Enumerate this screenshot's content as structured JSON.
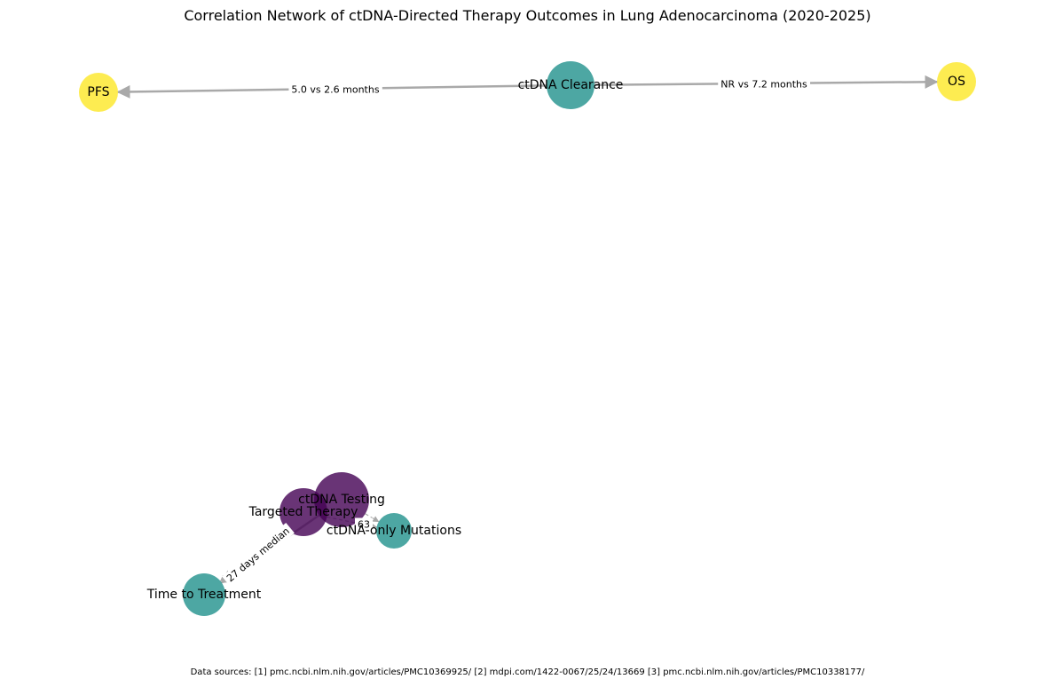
{
  "title": "Correlation Network of ctDNA-Directed Therapy Outcomes in Lung Adenocarcinoma (2020-2025)",
  "footer": "Data sources: [1] pmc.ncbi.nlm.nih.gov/articles/PMC10369925/ [2] mdpi.com/1422-0067/25/24/13669 [3] pmc.ncbi.nlm.nih.gov/articles/PMC10338177/",
  "colors": {
    "purple": "#440154",
    "teal": "#21918c",
    "yellow": "#fde725",
    "edge": "#a9a9a9"
  },
  "nodes": [
    {
      "id": "pfs",
      "label": "PFS",
      "color": "yellow"
    },
    {
      "id": "ctdna_clearance",
      "label": "ctDNA Clearance",
      "color": "teal"
    },
    {
      "id": "os",
      "label": "OS",
      "color": "yellow"
    },
    {
      "id": "ctdna_testing",
      "label": "ctDNA Testing",
      "color": "purple"
    },
    {
      "id": "targeted_therapy",
      "label": "Targeted Therapy",
      "color": "purple"
    },
    {
      "id": "ctdna_only_mutations",
      "label": "ctDNA-only Mutations",
      "color": "teal"
    },
    {
      "id": "time_to_treatment",
      "label": "Time to Treatment",
      "color": "teal"
    }
  ],
  "edges": [
    {
      "source": "ctdna_clearance",
      "target": "pfs",
      "label": "5.0 vs 2.6 months",
      "style": "solid"
    },
    {
      "source": "ctdna_clearance",
      "target": "os",
      "label": "NR vs 7.2 months",
      "style": "solid"
    },
    {
      "source": "ctdna_testing",
      "target": "time_to_treatment",
      "label": "27 days median",
      "style": "solid"
    },
    {
      "source": "targeted_therapy",
      "target": "time_to_treatment",
      "label": "",
      "style": "dashed"
    },
    {
      "source": "targeted_therapy",
      "target": "ctdna_only_mutations",
      "label": "63",
      "style": "dashed"
    },
    {
      "source": "ctdna_testing",
      "target": "ctdna_only_mutations",
      "label": "",
      "style": "dashed"
    }
  ]
}
